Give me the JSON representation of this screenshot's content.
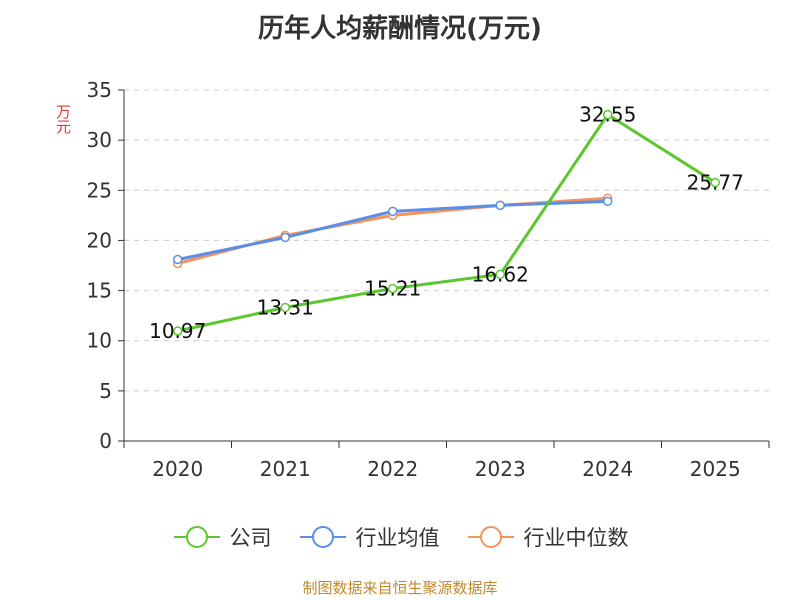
{
  "chart_data": {
    "type": "line",
    "title": "历年人均薪酬情况(万元)",
    "ylabel": "万元",
    "xlabel": "",
    "categories": [
      "2020",
      "2021",
      "2022",
      "2023",
      "2024",
      "2025"
    ],
    "ylim": [
      0,
      35
    ],
    "yticks": [
      0,
      5,
      10,
      15,
      20,
      25,
      30,
      35
    ],
    "grid": true,
    "legend_position": "bottom",
    "series": [
      {
        "name": "公司",
        "color": "#5cc72e",
        "values": [
          10.97,
          13.31,
          15.21,
          16.62,
          32.55,
          25.77
        ],
        "labels": [
          "10.97",
          "13.31",
          "15.21",
          "16.62",
          "32.55",
          "25.77"
        ]
      },
      {
        "name": "行业均值",
        "color": "#5b8ee6",
        "values": [
          18.1,
          20.3,
          22.9,
          23.5,
          23.9,
          null
        ]
      },
      {
        "name": "行业中位数",
        "color": "#f4935c",
        "values": [
          17.7,
          20.5,
          22.5,
          23.5,
          24.2,
          null
        ]
      }
    ]
  },
  "source": "制图数据来自恒生聚源数据库"
}
